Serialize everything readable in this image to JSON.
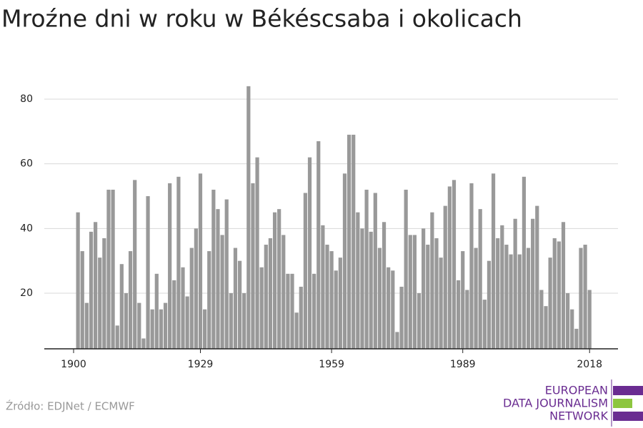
{
  "chart_data": {
    "type": "bar",
    "title": "Mroźne dni w roku w Békéscsaba i okolicach",
    "source": "Źródło: EDJNet / ECMWF",
    "logo": [
      "EUROPEAN",
      "DATA JOURNALISM",
      "NETWORK"
    ],
    "color": "#999999",
    "x": [
      1901,
      1902,
      1903,
      1904,
      1905,
      1906,
      1907,
      1908,
      1909,
      1910,
      1911,
      1912,
      1913,
      1914,
      1915,
      1916,
      1917,
      1918,
      1919,
      1920,
      1921,
      1922,
      1923,
      1924,
      1925,
      1926,
      1927,
      1928,
      1929,
      1930,
      1931,
      1932,
      1933,
      1934,
      1935,
      1936,
      1937,
      1938,
      1939,
      1940,
      1941,
      1942,
      1943,
      1944,
      1945,
      1946,
      1947,
      1948,
      1949,
      1950,
      1951,
      1952,
      1953,
      1954,
      1955,
      1956,
      1957,
      1958,
      1959,
      1960,
      1961,
      1962,
      1963,
      1964,
      1965,
      1966,
      1967,
      1968,
      1969,
      1970,
      1971,
      1972,
      1973,
      1974,
      1975,
      1976,
      1977,
      1978,
      1979,
      1980,
      1981,
      1982,
      1983,
      1984,
      1985,
      1986,
      1987,
      1988,
      1989,
      1990,
      1991,
      1992,
      1993,
      1994,
      1995,
      1996,
      1997,
      1998,
      1999,
      2000,
      2001,
      2002,
      2003,
      2004,
      2005,
      2006,
      2007,
      2008,
      2009,
      2010,
      2011,
      2012,
      2013,
      2014,
      2015,
      2016,
      2017,
      2018
    ],
    "values": [
      45,
      33,
      17,
      39,
      42,
      31,
      37,
      52,
      52,
      10,
      29,
      20,
      33,
      55,
      17,
      6,
      50,
      15,
      26,
      15,
      17,
      54,
      24,
      56,
      28,
      19,
      34,
      40,
      57,
      15,
      33,
      52,
      46,
      38,
      49,
      20,
      34,
      30,
      20,
      84,
      54,
      62,
      28,
      35,
      37,
      45,
      46,
      38,
      26,
      26,
      14,
      22,
      51,
      62,
      26,
      67,
      41,
      35,
      33,
      27,
      31,
      57,
      69,
      69,
      45,
      40,
      52,
      39,
      51,
      34,
      42,
      28,
      27,
      8,
      22,
      52,
      38,
      38,
      20,
      40,
      35,
      45,
      37,
      31,
      47,
      53,
      55,
      24,
      33,
      21,
      54,
      34,
      46,
      18,
      30,
      57,
      37,
      41,
      35,
      32,
      43,
      32,
      56,
      34,
      43,
      47,
      21,
      16,
      31,
      37,
      36,
      42,
      20,
      15,
      9,
      34,
      35,
      21
    ],
    "xlim": [
      1893.3,
      2024.5
    ],
    "xticks": [
      1900,
      1929,
      1959,
      1989,
      2018
    ],
    "ylim": [
      2.8,
      88.6
    ],
    "yticks": [
      20,
      40,
      60,
      80
    ],
    "grid": true
  }
}
